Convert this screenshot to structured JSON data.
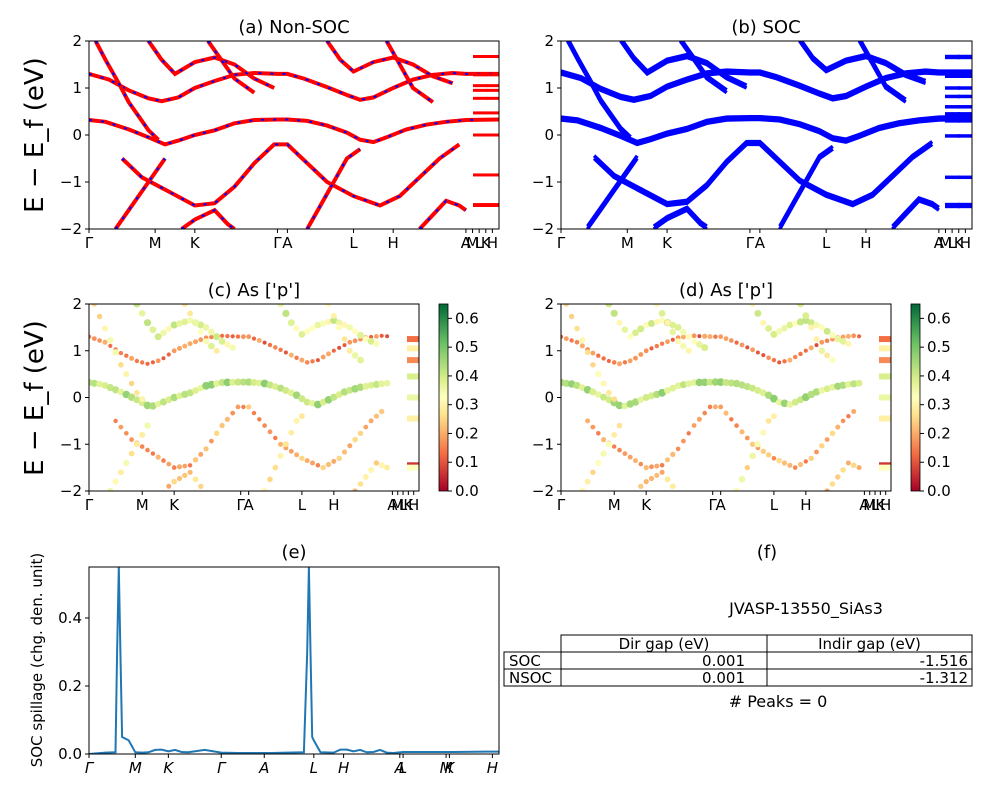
{
  "chart_data": [
    {
      "panel": "a",
      "type": "line",
      "title": "(a) Non-SOC",
      "ylabel": "E − E_f (eV)",
      "ylim": [
        -2,
        2
      ],
      "yticks": [
        "−2",
        "−1",
        "0",
        "1",
        "2"
      ],
      "xticks": [
        "Γ",
        "M",
        "K",
        "Γ",
        "A",
        "L",
        "H",
        "A",
        "M",
        "L",
        "K",
        "H"
      ],
      "xtick_pos": [
        0,
        0.2,
        0.32,
        0.57,
        0.6,
        0.8,
        0.92,
        1.14,
        1.16,
        1.18,
        1.2,
        1.22
      ],
      "xmax": 1.24,
      "series": [
        {
          "color": "#ff0000",
          "style": "solid",
          "values": [
            [
              0,
              0.32
            ],
            [
              0.05,
              0.28
            ],
            [
              0.12,
              0.12
            ],
            [
              0.18,
              -0.05
            ],
            [
              0.23,
              -0.2
            ],
            [
              0.27,
              -0.12
            ],
            [
              0.32,
              0
            ],
            [
              0.38,
              0.1
            ],
            [
              0.44,
              0.25
            ],
            [
              0.5,
              0.32
            ],
            [
              0.57,
              0.33
            ],
            [
              0.6,
              0.33
            ],
            [
              0.66,
              0.3
            ],
            [
              0.72,
              0.2
            ],
            [
              0.78,
              0.05
            ],
            [
              0.82,
              -0.1
            ],
            [
              0.86,
              -0.15
            ],
            [
              0.9,
              -0.05
            ],
            [
              0.96,
              0.12
            ],
            [
              1.02,
              0.22
            ],
            [
              1.08,
              0.28
            ],
            [
              1.14,
              0.32
            ],
            [
              1.24,
              0.33
            ]
          ]
        },
        {
          "color": "#ff0000",
          "style": "solid",
          "values": [
            [
              0,
              1.3
            ],
            [
              0.06,
              1.18
            ],
            [
              0.12,
              0.95
            ],
            [
              0.18,
              0.78
            ],
            [
              0.22,
              0.72
            ],
            [
              0.27,
              0.8
            ],
            [
              0.32,
              1.0
            ],
            [
              0.38,
              1.15
            ],
            [
              0.44,
              1.28
            ],
            [
              0.5,
              1.32
            ],
            [
              0.57,
              1.3
            ],
            [
              0.6,
              1.3
            ],
            [
              0.65,
              1.2
            ],
            [
              0.72,
              1.02
            ],
            [
              0.78,
              0.85
            ],
            [
              0.82,
              0.75
            ],
            [
              0.86,
              0.8
            ],
            [
              0.92,
              1.0
            ],
            [
              0.98,
              1.18
            ],
            [
              1.04,
              1.28
            ],
            [
              1.1,
              1.32
            ],
            [
              1.14,
              1.3
            ],
            [
              1.24,
              1.3
            ]
          ]
        },
        {
          "color": "#ff0000",
          "style": "solid",
          "values": [
            [
              0.02,
              2
            ],
            [
              0.05,
              1.6
            ],
            [
              0.09,
              1.1
            ],
            [
              0.12,
              0.7
            ],
            [
              0.15,
              0.4
            ],
            [
              0.18,
              0.1
            ],
            [
              0.21,
              -0.1
            ]
          ]
        },
        {
          "color": "#ff0000",
          "style": "solid",
          "values": [
            [
              0.1,
              -0.5
            ],
            [
              0.16,
              -0.9
            ],
            [
              0.24,
              -1.2
            ],
            [
              0.32,
              -1.5
            ],
            [
              0.38,
              -1.45
            ],
            [
              0.44,
              -1.1
            ],
            [
              0.5,
              -0.6
            ],
            [
              0.56,
              -0.2
            ],
            [
              0.6,
              -0.2
            ],
            [
              0.66,
              -0.6
            ],
            [
              0.72,
              -1.0
            ],
            [
              0.8,
              -1.3
            ],
            [
              0.88,
              -1.5
            ],
            [
              0.94,
              -1.3
            ],
            [
              1.0,
              -0.9
            ],
            [
              1.06,
              -0.5
            ],
            [
              1.12,
              -0.2
            ]
          ]
        },
        {
          "color": "#ff0000",
          "style": "solid",
          "values": [
            [
              0.18,
              2
            ],
            [
              0.22,
              1.6
            ],
            [
              0.26,
              1.3
            ],
            [
              0.32,
              1.55
            ],
            [
              0.38,
              1.65
            ],
            [
              0.44,
              1.5
            ],
            [
              0.5,
              1.2
            ],
            [
              0.56,
              1.0
            ]
          ]
        },
        {
          "color": "#ff0000",
          "style": "solid",
          "values": [
            [
              0.72,
              2
            ],
            [
              0.76,
              1.6
            ],
            [
              0.8,
              1.35
            ],
            [
              0.86,
              1.55
            ],
            [
              0.92,
              1.65
            ],
            [
              0.98,
              1.5
            ],
            [
              1.04,
              1.25
            ],
            [
              1.1,
              1.1
            ]
          ]
        },
        {
          "color": "#ff0000",
          "style": "solid",
          "values": [
            [
              0.08,
              -2
            ],
            [
              0.12,
              -1.6
            ],
            [
              0.16,
              -1.2
            ],
            [
              0.2,
              -0.8
            ],
            [
              0.23,
              -0.5
            ]
          ]
        },
        {
          "color": "#ff0000",
          "style": "solid",
          "values": [
            [
              0.66,
              -2
            ],
            [
              0.7,
              -1.5
            ],
            [
              0.74,
              -1.0
            ],
            [
              0.78,
              -0.5
            ],
            [
              0.82,
              -0.3
            ]
          ]
        },
        {
          "color": "#ff0000",
          "style": "solid",
          "values": [
            [
              0.36,
              2
            ],
            [
              0.4,
              1.6
            ],
            [
              0.44,
              1.2
            ],
            [
              0.5,
              0.9
            ]
          ]
        },
        {
          "color": "#ff0000",
          "style": "solid",
          "values": [
            [
              0.9,
              2
            ],
            [
              0.94,
              1.5
            ],
            [
              0.98,
              1.0
            ],
            [
              1.04,
              0.7
            ]
          ]
        },
        {
          "color": "#ff0000",
          "style": "solid",
          "values": [
            [
              0.28,
              -2
            ],
            [
              0.32,
              -1.8
            ],
            [
              0.38,
              -1.6
            ],
            [
              0.42,
              -1.9
            ],
            [
              0.44,
              -2
            ]
          ]
        },
        {
          "color": "#ff0000",
          "style": "solid",
          "values": [
            [
              1.0,
              -2
            ],
            [
              1.04,
              -1.7
            ],
            [
              1.08,
              -1.4
            ],
            [
              1.12,
              -1.5
            ],
            [
              1.14,
              -1.6
            ]
          ]
        }
      ],
      "side_marks": [
        1.67,
        1.28,
        1.05,
        0.95,
        0.78,
        0.47,
        0.32,
        0,
        -0.85,
        -1.48,
        -1.5
      ]
    },
    {
      "panel": "b",
      "type": "line",
      "title": "(b) SOC",
      "ylim": [
        -2,
        2
      ],
      "yticks": [
        "−2",
        "−1",
        "0",
        "1",
        "2"
      ],
      "xticks": [
        "Γ",
        "M",
        "K",
        "Γ",
        "A",
        "L",
        "H",
        "A",
        "M",
        "L",
        "K",
        "H"
      ],
      "series_color": "#0000ff",
      "side_marks": [
        1.67,
        1.65,
        1.25,
        1.0,
        0.82,
        0.6,
        0.45,
        0.35,
        0.3,
        -0.02,
        -0.9,
        -1.48,
        -1.52
      ]
    },
    {
      "panel": "c",
      "type": "scatter",
      "title": "(c)  As ['p']",
      "ylabel": "E − E_f (eV)",
      "ylim": [
        -2,
        2
      ],
      "yticks": [
        "−2",
        "−1",
        "0",
        "1",
        "2"
      ],
      "xticks": [
        "Γ",
        "M",
        "K",
        "Γ",
        "A",
        "L",
        "H",
        "A",
        "M",
        "L",
        "K",
        "H"
      ],
      "colorbar": {
        "min": 0.0,
        "max": 0.65,
        "ticks": [
          "0.0",
          "0.1",
          "0.2",
          "0.3",
          "0.4",
          "0.5",
          "0.6"
        ],
        "cmap": "RdYlGn"
      }
    },
    {
      "panel": "d",
      "type": "scatter",
      "title": "(d) As ['p']",
      "ylim": [
        -2,
        2
      ],
      "yticks": [
        "−2",
        "−1",
        "0",
        "1",
        "2"
      ],
      "xticks": [
        "Γ",
        "M",
        "K",
        "Γ",
        "A",
        "L",
        "H",
        "A",
        "M",
        "L",
        "K",
        "H"
      ],
      "colorbar": {
        "min": 0.0,
        "max": 0.65,
        "ticks": [
          "0.0",
          "0.1",
          "0.2",
          "0.3",
          "0.4",
          "0.5",
          "0.6"
        ],
        "cmap": "RdYlGn"
      }
    },
    {
      "panel": "e",
      "type": "line",
      "title": "(e)",
      "ylabel": "SOC spillage (chg. den. unit)",
      "ylim": [
        0,
        0.55
      ],
      "yticks": [
        "0.0",
        "0.2",
        "0.4"
      ],
      "xticks": [
        "Γ",
        "M",
        "K",
        "Γ",
        "A",
        "L",
        "H",
        "A",
        "L",
        "M",
        "K",
        "H"
      ],
      "color": "#1f77b4",
      "x": [
        0,
        0.05,
        0.08,
        0.085,
        0.09,
        0.095,
        0.1,
        0.12,
        0.14,
        0.16,
        0.18,
        0.2,
        0.22,
        0.24,
        0.26,
        0.28,
        0.3,
        0.35,
        0.4,
        0.45,
        0.5,
        0.5,
        0.55,
        0.6,
        0.65,
        0.66,
        0.665,
        0.67,
        0.675,
        0.68,
        0.7,
        0.74,
        0.76,
        0.78,
        0.8,
        0.82,
        0.84,
        0.86,
        0.88,
        0.9,
        0.92,
        0.95,
        1.0,
        1.1,
        1.2,
        1.24
      ],
      "values": [
        0.0,
        0.004,
        0.005,
        0.3,
        0.55,
        0.3,
        0.05,
        0.04,
        0.005,
        0.004,
        0.005,
        0.012,
        0.013,
        0.008,
        0.012,
        0.006,
        0.005,
        0.012,
        0.004,
        0.003,
        0.003,
        0.003,
        0.003,
        0.004,
        0.005,
        0.3,
        0.55,
        0.3,
        0.05,
        0.04,
        0.005,
        0.004,
        0.013,
        0.013,
        0.008,
        0.012,
        0.005,
        0.006,
        0.012,
        0.004,
        0.003,
        0.006,
        0.006,
        0.006,
        0.007,
        0.007
      ]
    },
    {
      "panel": "f",
      "type": "table",
      "title": "(f)",
      "name": "JVASP-13550_SiAs3",
      "headers": [
        "",
        "Dir gap (eV)",
        "Indir gap (eV)"
      ],
      "rows": [
        [
          "SOC",
          "0.001",
          "-1.516"
        ],
        [
          "NSOC",
          "0.001",
          "-1.312"
        ]
      ],
      "footer": "# Peaks = 0"
    }
  ]
}
